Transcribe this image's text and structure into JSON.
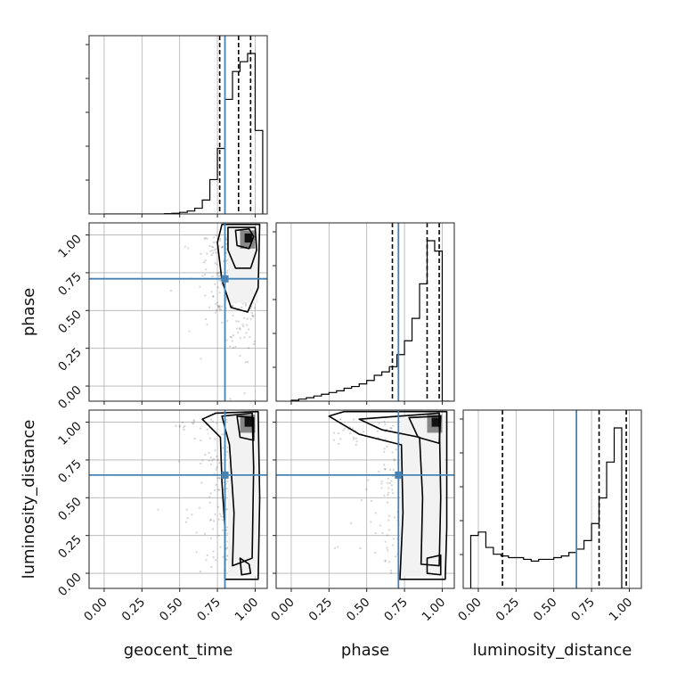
{
  "chart_data": {
    "type": "corner",
    "parameters": [
      {
        "key": "geocent_time",
        "label": "geocent_time"
      },
      {
        "key": "phase",
        "label": "phase"
      },
      {
        "key": "luminosity_distance",
        "label": "luminosity_distance"
      }
    ],
    "axis_range": [
      -0.1,
      1.08
    ],
    "ticks": [
      0.0,
      0.25,
      0.5,
      0.75,
      1.0
    ],
    "tick_labels": [
      "0.00",
      "0.25",
      "0.50",
      "0.75",
      "1.00"
    ],
    "grid": true,
    "truths": {
      "geocent_time": 0.8,
      "phase": 0.71,
      "luminosity_distance": 0.65
    },
    "truth_color": "#4682b4",
    "quantiles": {
      "geocent_time": [
        0.765,
        0.89,
        0.97
      ],
      "phase": [
        0.67,
        0.9,
        0.98
      ],
      "luminosity_distance": [
        0.16,
        0.8,
        0.98
      ]
    },
    "histograms": {
      "geocent_time": {
        "edges": [
          0.0,
          0.05,
          0.1,
          0.15,
          0.2,
          0.25,
          0.3,
          0.35,
          0.4,
          0.45,
          0.5,
          0.55,
          0.6,
          0.65,
          0.7,
          0.75,
          0.8,
          0.85,
          0.9,
          0.95,
          1.0,
          1.05
        ],
        "counts": [
          0,
          0,
          0,
          0,
          0,
          0,
          0,
          0,
          0.002,
          0.004,
          0.01,
          0.018,
          0.035,
          0.085,
          0.21,
          0.4,
          0.7,
          0.87,
          0.93,
          0.98,
          0.51
        ]
      },
      "phase": {
        "edges": [
          0.0,
          0.05,
          0.1,
          0.15,
          0.2,
          0.25,
          0.3,
          0.35,
          0.4,
          0.45,
          0.5,
          0.55,
          0.6,
          0.65,
          0.7,
          0.75,
          0.8,
          0.85,
          0.9,
          0.95,
          1.0,
          1.05
        ],
        "counts": [
          0.005,
          0.012,
          0.02,
          0.03,
          0.04,
          0.05,
          0.06,
          0.075,
          0.085,
          0.1,
          0.12,
          0.15,
          0.17,
          0.2,
          0.27,
          0.35,
          0.48,
          0.68,
          0.93,
          0.87,
          0.0
        ]
      },
      "luminosity_distance": {
        "edges": [
          -0.05,
          0.0,
          0.05,
          0.1,
          0.15,
          0.2,
          0.25,
          0.3,
          0.35,
          0.4,
          0.45,
          0.5,
          0.55,
          0.6,
          0.65,
          0.7,
          0.75,
          0.8,
          0.85,
          0.9,
          0.95,
          1.0
        ],
        "counts": [
          0.31,
          0.33,
          0.24,
          0.2,
          0.19,
          0.18,
          0.18,
          0.17,
          0.16,
          0.17,
          0.17,
          0.18,
          0.19,
          0.21,
          0.23,
          0.28,
          0.38,
          0.53,
          0.74,
          0.94,
          0.0
        ]
      }
    }
  }
}
